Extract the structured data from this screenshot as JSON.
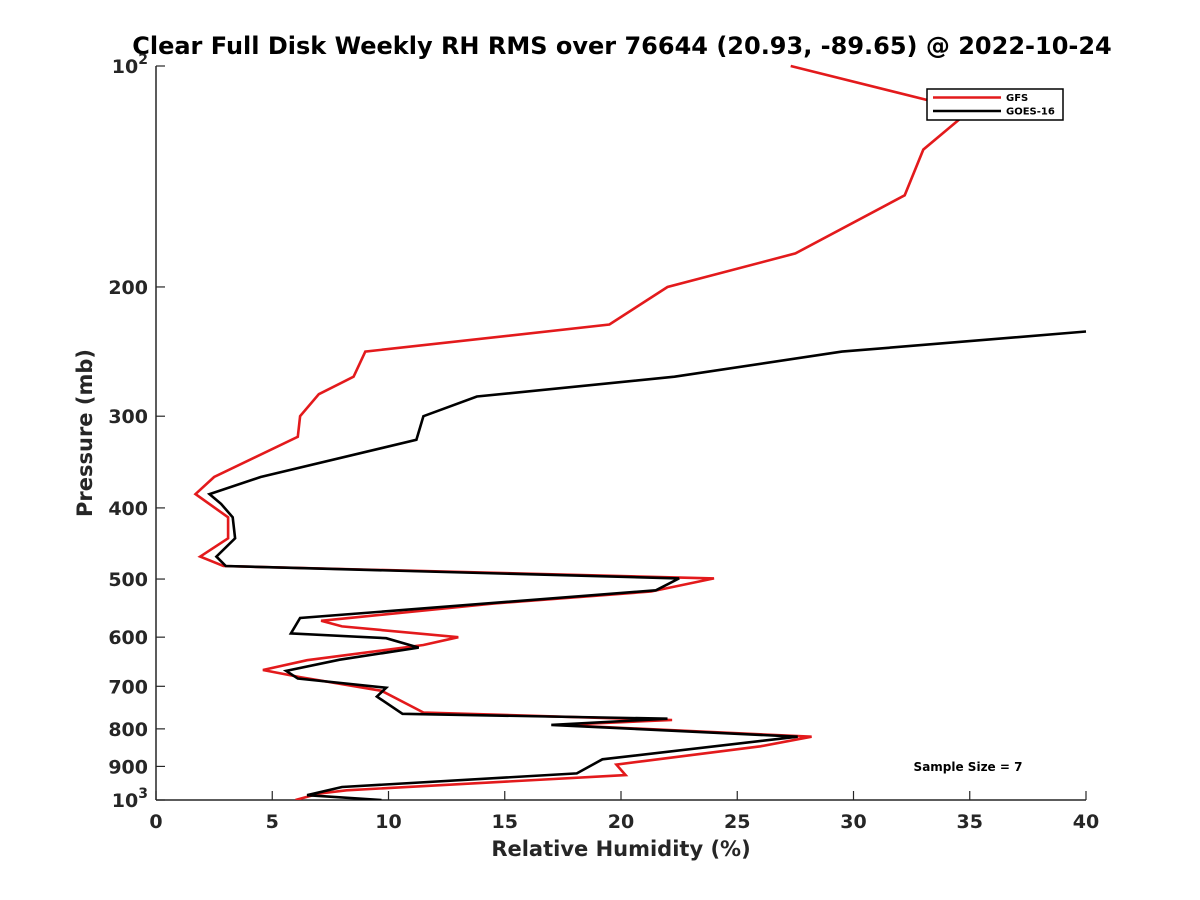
{
  "chart_data": {
    "type": "line",
    "title": "Clear Full Disk Weekly RH RMS over 76644 (20.93, -89.65) @ 2022-10-24",
    "xlabel": "Relative Humidity (%)",
    "ylabel": "Pressure (mb)",
    "xlim": [
      0,
      40
    ],
    "ylim": [
      100,
      1000
    ],
    "yscale": "log",
    "yreversed": true,
    "x_ticks": [
      {
        "value": 0,
        "label": "0"
      },
      {
        "value": 5,
        "label": "5"
      },
      {
        "value": 10,
        "label": "10"
      },
      {
        "value": 15,
        "label": "15"
      },
      {
        "value": 20,
        "label": "20"
      },
      {
        "value": 25,
        "label": "25"
      },
      {
        "value": 30,
        "label": "30"
      },
      {
        "value": 35,
        "label": "35"
      },
      {
        "value": 40,
        "label": "40"
      }
    ],
    "y_ticks": [
      {
        "value": 100,
        "base": "10",
        "exp": "2"
      },
      {
        "value": 200,
        "label": "200"
      },
      {
        "value": 300,
        "label": "300"
      },
      {
        "value": 400,
        "label": "400"
      },
      {
        "value": 500,
        "label": "500"
      },
      {
        "value": 600,
        "label": "600"
      },
      {
        "value": 700,
        "label": "700"
      },
      {
        "value": 800,
        "label": "800"
      },
      {
        "value": 900,
        "label": "900"
      },
      {
        "value": 1000,
        "base": "10",
        "exp": "3"
      }
    ],
    "legend": {
      "position": "top-right",
      "entries": [
        "GFS",
        "GOES-16"
      ]
    },
    "annotation": "Sample Size = 7",
    "grid": false,
    "series": [
      {
        "name": "GFS",
        "color": "#e31a1c",
        "points": [
          [
            27.3,
            100
          ],
          [
            35.0,
            115
          ],
          [
            33.0,
            130
          ],
          [
            32.2,
            150
          ],
          [
            27.5,
            180
          ],
          [
            22.0,
            200
          ],
          [
            19.5,
            225
          ],
          [
            9.0,
            245
          ],
          [
            8.5,
            265
          ],
          [
            7.0,
            280
          ],
          [
            6.2,
            300
          ],
          [
            6.1,
            320
          ],
          [
            2.5,
            363
          ],
          [
            1.7,
            383
          ],
          [
            3.1,
            412
          ],
          [
            3.1,
            440
          ],
          [
            1.9,
            466
          ],
          [
            2.9,
            480
          ],
          [
            24.0,
            499
          ],
          [
            21.3,
            520
          ],
          [
            14.5,
            540
          ],
          [
            7.1,
            570
          ],
          [
            8.0,
            580
          ],
          [
            13.0,
            600
          ],
          [
            11.5,
            615
          ],
          [
            6.5,
            645
          ],
          [
            4.6,
            665
          ],
          [
            6.2,
            680
          ],
          [
            9.7,
            710
          ],
          [
            11.5,
            760
          ],
          [
            22.2,
            778
          ],
          [
            17.3,
            790
          ],
          [
            28.2,
            820
          ],
          [
            26.0,
            845
          ],
          [
            19.8,
            895
          ],
          [
            20.0,
            910
          ],
          [
            20.2,
            925
          ],
          [
            8.2,
            970
          ],
          [
            7.0,
            980
          ],
          [
            6.0,
            1000
          ]
        ]
      },
      {
        "name": "GOES-16",
        "color": "#000000",
        "points": [
          [
            40.0,
            230
          ],
          [
            29.5,
            245
          ],
          [
            22.3,
            265
          ],
          [
            13.8,
            282
          ],
          [
            11.5,
            300
          ],
          [
            11.2,
            323
          ],
          [
            4.5,
            363
          ],
          [
            2.3,
            383
          ],
          [
            2.8,
            395
          ],
          [
            3.3,
            412
          ],
          [
            3.4,
            440
          ],
          [
            2.6,
            466
          ],
          [
            3.0,
            480
          ],
          [
            22.5,
            499
          ],
          [
            21.5,
            518
          ],
          [
            6.2,
            565
          ],
          [
            5.8,
            593
          ],
          [
            9.9,
            602
          ],
          [
            11.3,
            620
          ],
          [
            7.9,
            644
          ],
          [
            5.6,
            667
          ],
          [
            6.1,
            683
          ],
          [
            9.9,
            703
          ],
          [
            9.5,
            723
          ],
          [
            10.6,
            763
          ],
          [
            22.0,
            775
          ],
          [
            17.0,
            790
          ],
          [
            27.6,
            820
          ],
          [
            19.2,
            880
          ],
          [
            18.1,
            920
          ],
          [
            8.0,
            960
          ],
          [
            6.5,
            985
          ],
          [
            9.7,
            1000
          ]
        ]
      }
    ]
  }
}
